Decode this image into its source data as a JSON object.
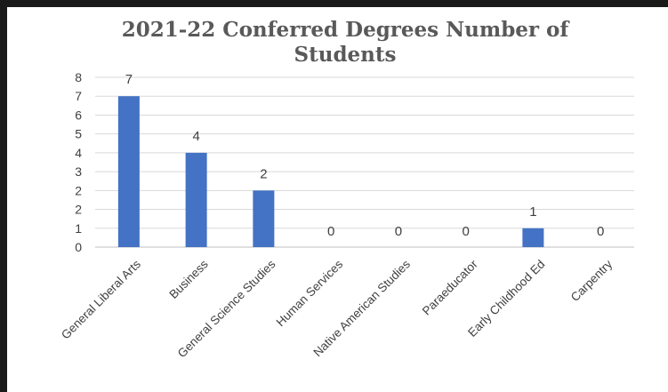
{
  "chart_data": {
    "type": "bar",
    "title": "2021-22 Conferred Degrees Number of\nStudents",
    "categories": [
      "General Liberal Arts",
      "Business",
      "General Science Studies",
      "Human Services",
      "Native American Studies",
      "Paraeducator",
      "Early Childhood Ed",
      "Carpentry"
    ],
    "values": [
      7,
      4,
      2,
      0,
      0,
      0,
      1,
      0
    ],
    "data_labels": [
      "7",
      "4",
      "2",
      "0",
      "0",
      "0",
      "1",
      "0"
    ],
    "y_ticks": [
      "0",
      "1",
      "2",
      "2",
      "3",
      "4",
      "5",
      "6",
      "7",
      "8"
    ],
    "ylim": [
      0,
      8
    ],
    "grid": true,
    "legend": "none",
    "bar_color": "#4472C4"
  }
}
